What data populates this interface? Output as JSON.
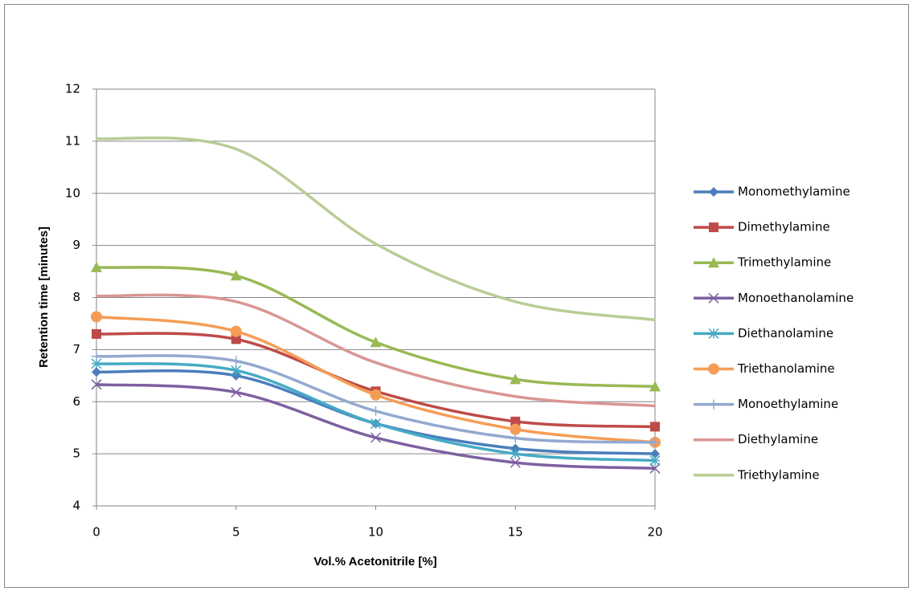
{
  "chart_data": {
    "type": "line",
    "smooth": true,
    "xlabel": "Vol.% Acetonitrile [%]",
    "ylabel": "Retention time [minutes]",
    "x": [
      0,
      5,
      10,
      15,
      20
    ],
    "xlim": [
      0,
      20
    ],
    "xticks": [
      0,
      5,
      10,
      15,
      20
    ],
    "ylim": [
      4,
      12
    ],
    "yticks": [
      4,
      5,
      6,
      7,
      8,
      9,
      10,
      11,
      12
    ],
    "grid": true,
    "legend": "right",
    "series": [
      {
        "name": "Monomethylamine",
        "color": "#4a7ebb",
        "marker": "diamond",
        "values": [
          6.57,
          6.5,
          5.58,
          5.1,
          5.0
        ]
      },
      {
        "name": "Dimethylamine",
        "color": "#be4b48",
        "marker": "square",
        "values": [
          7.3,
          7.2,
          6.2,
          5.62,
          5.52
        ]
      },
      {
        "name": "Trimethylamine",
        "color": "#98b954",
        "marker": "triangle",
        "values": [
          8.58,
          8.42,
          7.14,
          6.43,
          6.29
        ]
      },
      {
        "name": "Monoethanolamine",
        "color": "#7d60a0",
        "marker": "x",
        "values": [
          6.33,
          6.18,
          5.31,
          4.83,
          4.72
        ]
      },
      {
        "name": "Diethanolamine",
        "color": "#46aac5",
        "marker": "star",
        "values": [
          6.73,
          6.6,
          5.58,
          5.0,
          4.87
        ]
      },
      {
        "name": "Triethanolamine",
        "color": "#f59d56",
        "marker": "circle",
        "values": [
          7.63,
          7.35,
          6.13,
          5.47,
          5.22
        ]
      },
      {
        "name": "Monoethylamine",
        "color": "#93a9d0",
        "marker": "plus",
        "values": [
          6.87,
          6.78,
          5.82,
          5.3,
          5.22
        ]
      },
      {
        "name": "Diethylamine",
        "color": "#d99694",
        "marker": "none",
        "values": [
          8.03,
          7.92,
          6.75,
          6.1,
          5.92
        ]
      },
      {
        "name": "Triethylamine",
        "color": "#b9cd96",
        "marker": "none",
        "values": [
          11.05,
          10.85,
          9.03,
          7.92,
          7.57
        ]
      }
    ]
  }
}
